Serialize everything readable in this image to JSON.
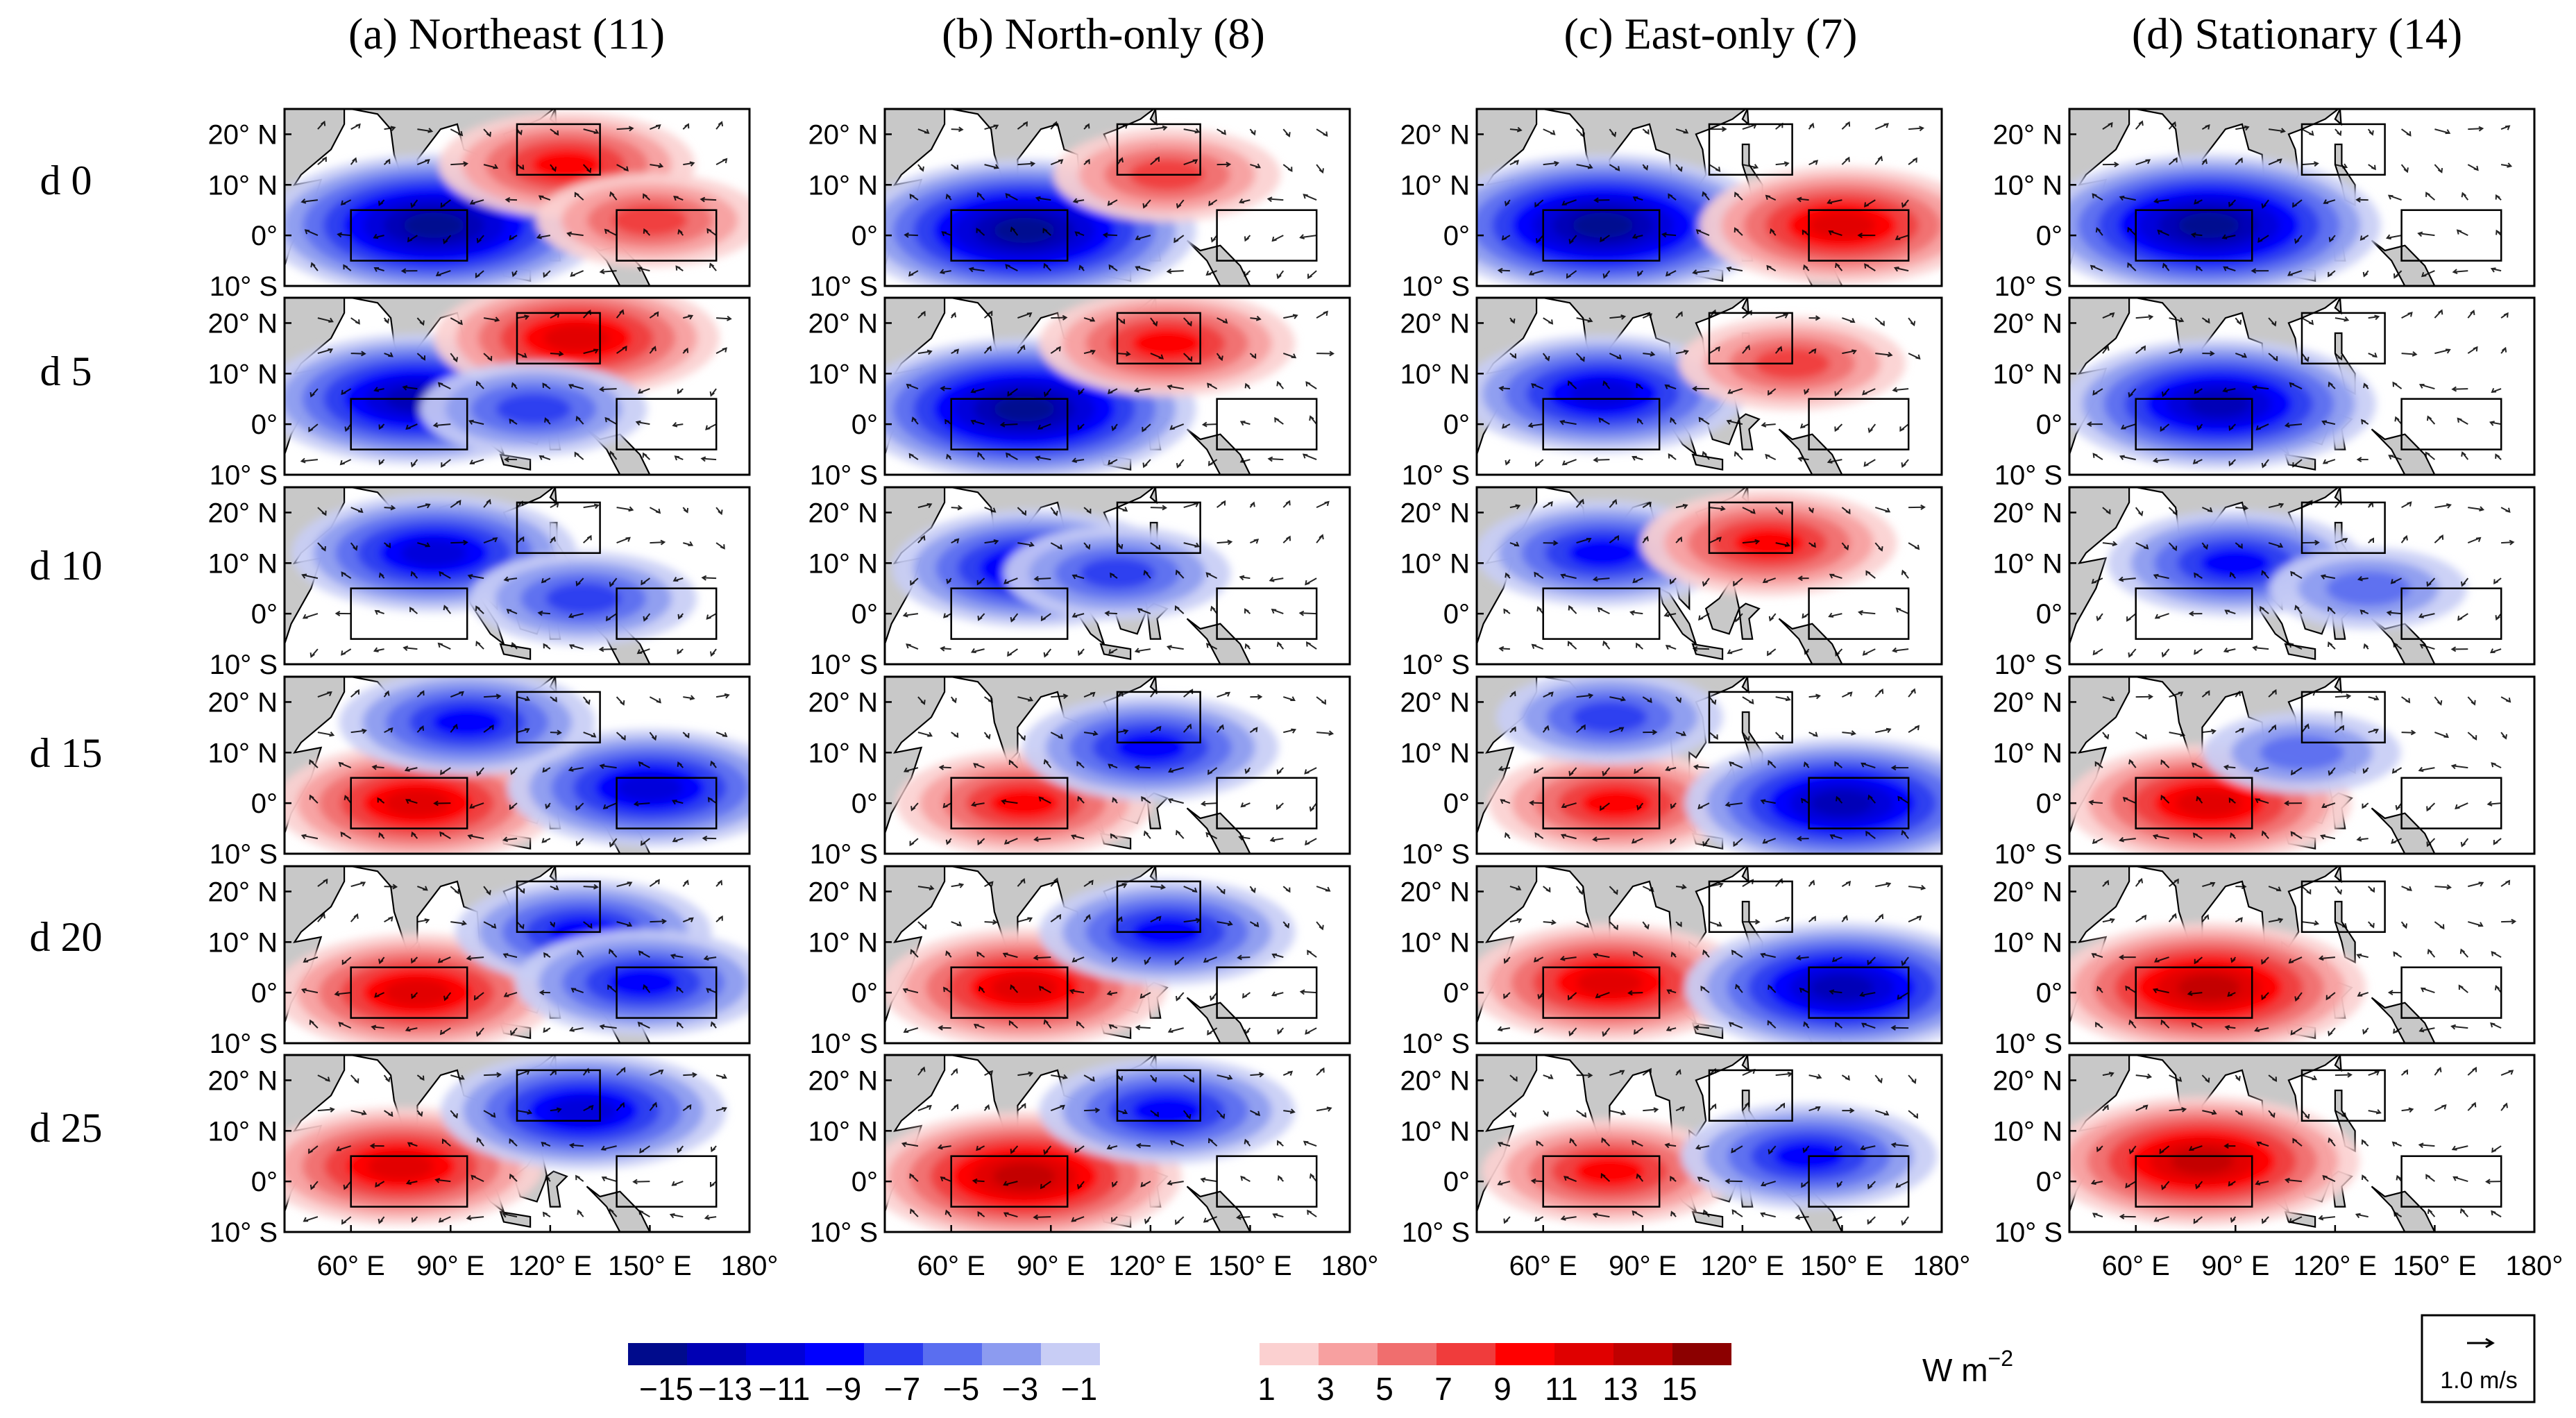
{
  "panels": [
    {
      "title": "(a) Northeast (11)"
    },
    {
      "title": "(b) North-only (8)"
    },
    {
      "title": "(c) East-only (7)"
    },
    {
      "title": "(d) Stationary (14)"
    }
  ],
  "rows": [
    "d 0",
    "d 5",
    "d 10",
    "d 15",
    "d 20",
    "d 25"
  ],
  "lat_ticks": [
    "20° N",
    "10° N",
    "0°",
    "10° S"
  ],
  "lon_ticks": [
    "60° E",
    "90° E",
    "120° E",
    "150° E",
    "180°"
  ],
  "colorbar": {
    "labels": [
      "−15",
      "−13",
      "−11",
      "−9",
      "−7",
      "−5",
      "−3",
      "−1",
      "1",
      "3",
      "5",
      "7",
      "9",
      "11",
      "13",
      "15"
    ],
    "neg_colors": [
      "#000b8c",
      "#0000b4",
      "#0000d8",
      "#0000ff",
      "#2b3cf0",
      "#5a6ef0",
      "#8c9bf0",
      "#c8cdf5"
    ],
    "pos_colors": [
      "#fbd0d0",
      "#f7a0a0",
      "#f06e6e",
      "#f03c3c",
      "#ff0000",
      "#e00000",
      "#c00000",
      "#8c0000"
    ],
    "units": "W m",
    "units_exp": "−2"
  },
  "reference_vector": {
    "label": "1.0 m/s"
  },
  "colors": {
    "land": "#c8c8c8",
    "frame": "#000000"
  },
  "chart_data": {
    "type": "heatmap",
    "panel_anomalies": [
      {
        "panel": "(a) Northeast (11)",
        "rows": [
          {
            "day": "d 0",
            "blobs": [
              {
                "lon": 85,
                "lat": 2,
                "value": -15
              },
              {
                "lon": 125,
                "lat": 14,
                "value": 9
              },
              {
                "lon": 150,
                "lat": 3,
                "value": 7
              }
            ]
          },
          {
            "day": "d 5",
            "blobs": [
              {
                "lon": 80,
                "lat": 5,
                "value": -13
              },
              {
                "lon": 128,
                "lat": 17,
                "value": 11
              },
              {
                "lon": 115,
                "lat": 3,
                "value": -7
              }
            ]
          },
          {
            "day": "d 10",
            "blobs": [
              {
                "lon": 85,
                "lat": 12,
                "value": -11
              },
              {
                "lon": 130,
                "lat": 3,
                "value": -7
              }
            ]
          },
          {
            "day": "d 15",
            "blobs": [
              {
                "lon": 80,
                "lat": 0,
                "value": 11
              },
              {
                "lon": 150,
                "lat": 3,
                "value": -11
              },
              {
                "lon": 95,
                "lat": 16,
                "value": -9
              }
            ]
          },
          {
            "day": "d 20",
            "blobs": [
              {
                "lon": 80,
                "lat": 0,
                "value": 11
              },
              {
                "lon": 130,
                "lat": 12,
                "value": -9
              },
              {
                "lon": 148,
                "lat": 2,
                "value": -9
              }
            ]
          },
          {
            "day": "d 25",
            "blobs": [
              {
                "lon": 75,
                "lat": 3,
                "value": 11
              },
              {
                "lon": 130,
                "lat": 14,
                "value": -11
              }
            ]
          }
        ]
      },
      {
        "panel": "(b) North-only (8)",
        "rows": [
          {
            "day": "d 0",
            "blobs": [
              {
                "lon": 82,
                "lat": 1,
                "value": -15
              },
              {
                "lon": 125,
                "lat": 12,
                "value": 7
              }
            ]
          },
          {
            "day": "d 5",
            "blobs": [
              {
                "lon": 82,
                "lat": 3,
                "value": -15
              },
              {
                "lon": 125,
                "lat": 16,
                "value": 9
              }
            ]
          },
          {
            "day": "d 10",
            "blobs": [
              {
                "lon": 85,
                "lat": 9,
                "value": -11
              },
              {
                "lon": 110,
                "lat": 8,
                "value": -7
              }
            ]
          },
          {
            "day": "d 15",
            "blobs": [
              {
                "lon": 82,
                "lat": 0,
                "value": 9
              },
              {
                "lon": 120,
                "lat": 11,
                "value": -9
              }
            ]
          },
          {
            "day": "d 20",
            "blobs": [
              {
                "lon": 82,
                "lat": 1,
                "value": 11
              },
              {
                "lon": 125,
                "lat": 12,
                "value": -9
              }
            ]
          },
          {
            "day": "d 25",
            "blobs": [
              {
                "lon": 82,
                "lat": 1,
                "value": 13
              },
              {
                "lon": 125,
                "lat": 14,
                "value": -9
              }
            ]
          }
        ]
      },
      {
        "panel": "(c) East-only (7)",
        "rows": [
          {
            "day": "d 0",
            "blobs": [
              {
                "lon": 78,
                "lat": 2,
                "value": -15
              },
              {
                "lon": 150,
                "lat": 2,
                "value": 11
              }
            ]
          },
          {
            "day": "d 5",
            "blobs": [
              {
                "lon": 78,
                "lat": 6,
                "value": -11
              },
              {
                "lon": 135,
                "lat": 12,
                "value": 7
              }
            ]
          },
          {
            "day": "d 10",
            "blobs": [
              {
                "lon": 78,
                "lat": 12,
                "value": -9
              },
              {
                "lon": 128,
                "lat": 14,
                "value": 9
              }
            ]
          },
          {
            "day": "d 15",
            "blobs": [
              {
                "lon": 82,
                "lat": 0,
                "value": 9
              },
              {
                "lon": 150,
                "lat": 0,
                "value": -13
              },
              {
                "lon": 80,
                "lat": 17,
                "value": -7
              }
            ]
          },
          {
            "day": "d 20",
            "blobs": [
              {
                "lon": 80,
                "lat": 2,
                "value": 11
              },
              {
                "lon": 150,
                "lat": 1,
                "value": -13
              }
            ]
          },
          {
            "day": "d 25",
            "blobs": [
              {
                "lon": 80,
                "lat": 2,
                "value": 9
              },
              {
                "lon": 140,
                "lat": 5,
                "value": -9
              }
            ]
          }
        ]
      },
      {
        "panel": "(d) Stationary (14)",
        "rows": [
          {
            "day": "d 0",
            "blobs": [
              {
                "lon": 82,
                "lat": 2,
                "value": -15
              }
            ]
          },
          {
            "day": "d 5",
            "blobs": [
              {
                "lon": 85,
                "lat": 4,
                "value": -13
              }
            ]
          },
          {
            "day": "d 10",
            "blobs": [
              {
                "lon": 90,
                "lat": 10,
                "value": -9
              },
              {
                "lon": 130,
                "lat": 5,
                "value": -5
              }
            ]
          },
          {
            "day": "d 15",
            "blobs": [
              {
                "lon": 82,
                "lat": 0,
                "value": 11
              },
              {
                "lon": 110,
                "lat": 10,
                "value": -5
              }
            ]
          },
          {
            "day": "d 20",
            "blobs": [
              {
                "lon": 82,
                "lat": 1,
                "value": 13
              }
            ]
          },
          {
            "day": "d 25",
            "blobs": [
              {
                "lon": 80,
                "lat": 4,
                "value": 13
              }
            ]
          }
        ]
      }
    ],
    "lon_range": [
      40,
      180
    ],
    "lat_range": [
      -10,
      25
    ]
  }
}
